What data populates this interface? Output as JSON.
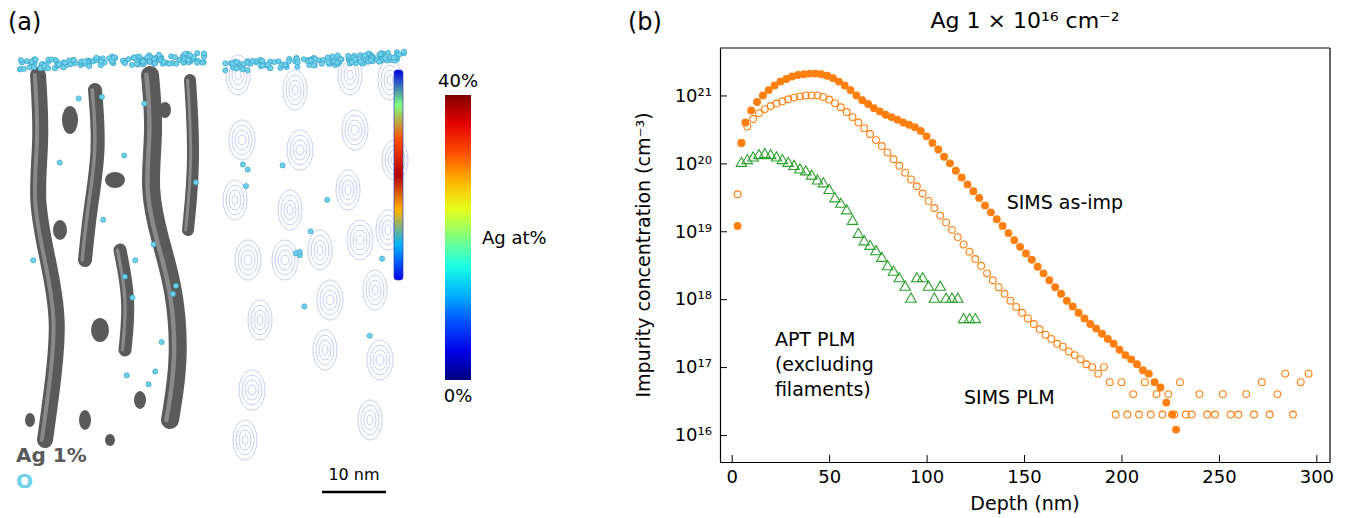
{
  "chart_data": [
    {
      "type": "image",
      "label": "(a)",
      "legend_items": [
        {
          "name": "Ag 1%",
          "color": "#5a5a5a"
        },
        {
          "name": "O",
          "color": "#6fd0ea"
        }
      ],
      "colorbar": {
        "title": "Ag at%",
        "range": [
          0,
          40
        ],
        "ticks": [
          {
            "value": 0,
            "label": "0%"
          },
          {
            "value": 40,
            "label": "40%"
          }
        ]
      },
      "scale_bar": "10 nm"
    },
    {
      "type": "scatter",
      "label": "(b)",
      "title": "Ag 1 × 10¹⁶ cm⁻²",
      "x_label": "Depth (nm)",
      "y_label": "Impurity concentration (cm⁻³)",
      "log": "y",
      "xlim": [
        -6,
        307
      ],
      "ylim": [
        4000000000000000.0,
        5e+21
      ],
      "xticks": [
        0,
        50,
        100,
        150,
        200,
        250,
        300
      ],
      "yticks": [
        {
          "value": 1e+16,
          "label": "10¹⁶"
        },
        {
          "value": 1e+17,
          "label": "10¹⁷"
        },
        {
          "value": 1e+18,
          "label": "10¹⁸"
        },
        {
          "value": 1e+19,
          "label": "10¹⁹"
        },
        {
          "value": 1e+20,
          "label": "10²⁰"
        },
        {
          "value": 1e+21,
          "label": "10²¹"
        }
      ],
      "series": [
        {
          "name": "SIMS as-imp",
          "color": "#ff7f0e",
          "marker": "filled_circle",
          "x": [
            3,
            5,
            7,
            10,
            13,
            16,
            19,
            22,
            25,
            28,
            31,
            34,
            37,
            40,
            43,
            46,
            49,
            52,
            55,
            58,
            61,
            64,
            67,
            70,
            73,
            76,
            79,
            82,
            85,
            88,
            91,
            94,
            97,
            100,
            103,
            106,
            109,
            112,
            115,
            118,
            121,
            124,
            127,
            130,
            133,
            136,
            139,
            142,
            145,
            148,
            151,
            154,
            157,
            160,
            163,
            166,
            169,
            172,
            175,
            178,
            181,
            184,
            187,
            190,
            193,
            196,
            199,
            202,
            205,
            208,
            211,
            214,
            217,
            220,
            223,
            226,
            228
          ],
          "values": [
            1.2e+19,
            2e+20,
            4e+20,
            6e+20,
            8e+20,
            1e+21,
            1.2e+21,
            1.4e+21,
            1.6e+21,
            1.75e+21,
            1.9e+21,
            2e+21,
            2.05e+21,
            2.1e+21,
            2.1e+21,
            2.05e+21,
            1.95e+21,
            1.8e+21,
            1.6e+21,
            1.4e+21,
            1.2e+21,
            1e+21,
            8.5e+20,
            7.5e+20,
            6.5e+20,
            5.8e+20,
            5.2e+20,
            4.8e+20,
            4.4e+20,
            4e+20,
            3.7e+20,
            3.4e+20,
            3e+20,
            2.5e+20,
            2e+20,
            1.6e+20,
            1.25e+20,
            1e+20,
            7.8e+19,
            6.2e+19,
            4.9e+19,
            3.9e+19,
            3.1e+19,
            2.4e+19,
            1.9e+19,
            1.5e+19,
            1.2e+19,
            9.4e+18,
            7.4e+18,
            5.9e+18,
            4.7e+18,
            3.8e+18,
            3e+18,
            2.4e+18,
            1.9e+18,
            1.5e+18,
            1.2e+18,
            9.5e+17,
            7.8e+17,
            6.3e+17,
            5.2e+17,
            4.3e+17,
            3.7e+17,
            3.1e+17,
            2.6e+17,
            2.2e+17,
            1.8e+17,
            1.5e+17,
            1.3e+17,
            1.1e+17,
            9e+16,
            8e+16,
            6e+16,
            5e+16,
            3e+16,
            2e+16,
            1.2e+16
          ]
        },
        {
          "name": "SIMS PLM",
          "color": "#ff7f0e",
          "marker": "open_circle",
          "x": [
            3,
            5,
            8,
            11,
            14,
            17,
            20,
            23,
            26,
            29,
            32,
            35,
            38,
            41,
            44,
            47,
            50,
            53,
            56,
            59,
            62,
            65,
            68,
            71,
            74,
            77,
            80,
            83,
            86,
            89,
            92,
            95,
            98,
            101,
            104,
            107,
            110,
            113,
            116,
            119,
            122,
            125,
            128,
            131,
            134,
            137,
            140,
            143,
            146,
            149,
            152,
            155,
            158,
            161,
            164,
            167,
            170,
            173,
            176,
            179,
            182,
            185,
            188,
            191,
            194,
            197,
            200,
            203,
            206,
            209,
            212,
            215,
            218,
            221,
            224,
            227,
            230,
            233,
            236,
            240,
            244,
            248,
            252,
            256,
            260,
            264,
            268,
            272,
            276,
            280,
            284,
            288,
            292,
            296
          ],
          "values": [
            3.5e+19,
            2e+20,
            3.5e+20,
            4.5e+20,
            5.5e+20,
            6.3e+20,
            7e+20,
            7.6e+20,
            8.2e+20,
            8.8e+20,
            9.3e+20,
            9.7e+20,
            1e+21,
            1e+21,
            1e+21,
            9.5e+20,
            8.7e+20,
            7.7e+20,
            6.7e+20,
            5.7e+20,
            4.8e+20,
            4e+20,
            3.3e+20,
            2.7e+20,
            2.2e+20,
            1.8e+20,
            1.45e+20,
            1.15e+20,
            9.2e+19,
            7.3e+19,
            5.8e+19,
            4.6e+19,
            3.6e+19,
            2.8e+19,
            2.2e+19,
            1.7e+19,
            1.35e+19,
            1.05e+19,
            8.2e+18,
            6.4e+18,
            5e+18,
            3.9e+18,
            3.1e+18,
            2.4e+18,
            1.9e+18,
            1.5e+18,
            1.2e+18,
            9.5e+17,
            7.7e+17,
            6.3e+17,
            5.2e+17,
            4.3e+17,
            3.6e+17,
            3e+17,
            2.6e+17,
            2.2e+17,
            2e+17,
            1.7e+17,
            1.5e+17,
            1.3e+17,
            1.1e+17,
            1e+17,
            8e+16,
            1e+17,
            6e+16,
            2e+16,
            6e+16,
            2e+16,
            4e+16,
            2e+16,
            6e+16,
            2e+16,
            4e+16,
            2e+16,
            4e+16,
            2e+16,
            6e+16,
            2e+16,
            2e+16,
            4e+16,
            2e+16,
            2e+16,
            4e+16,
            2e+16,
            2e+16,
            4e+16,
            2e+16,
            6e+16,
            2e+16,
            4e+16,
            8e+16,
            2e+16,
            6e+16,
            8e+16
          ]
        },
        {
          "name": "APT PLM\n(excluding\nfilaments)",
          "color": "#2ca02c",
          "marker": "open_triangle",
          "x": [
            5,
            8,
            11,
            14,
            17,
            20,
            23,
            26,
            29,
            32,
            35,
            38,
            41,
            44,
            47,
            50,
            53,
            56,
            59,
            62,
            65,
            68,
            71,
            74,
            77,
            80,
            83,
            86,
            89,
            92,
            95,
            98,
            101,
            104,
            107,
            110,
            113,
            116,
            119,
            122,
            125
          ],
          "values": [
            1e+20,
            1.1e+20,
            1.2e+20,
            1.3e+20,
            1.35e+20,
            1.3e+20,
            1.2e+20,
            1.1e+20,
            1e+20,
            9e+19,
            8e+19,
            7.5e+19,
            6.5e+19,
            5.5e+19,
            5e+19,
            4e+19,
            3e+19,
            2.5e+19,
            2e+19,
            1.4e+19,
            9e+18,
            7e+18,
            6e+18,
            5e+18,
            4e+18,
            3e+18,
            2.5e+18,
            2e+18,
            1.5e+18,
            1e+18,
            2e+18,
            2e+18,
            1.5e+18,
            1e+18,
            1.5e+18,
            1e+18,
            1e+18,
            1e+18,
            5e+17,
            5e+17,
            5e+17
          ]
        }
      ]
    }
  ]
}
